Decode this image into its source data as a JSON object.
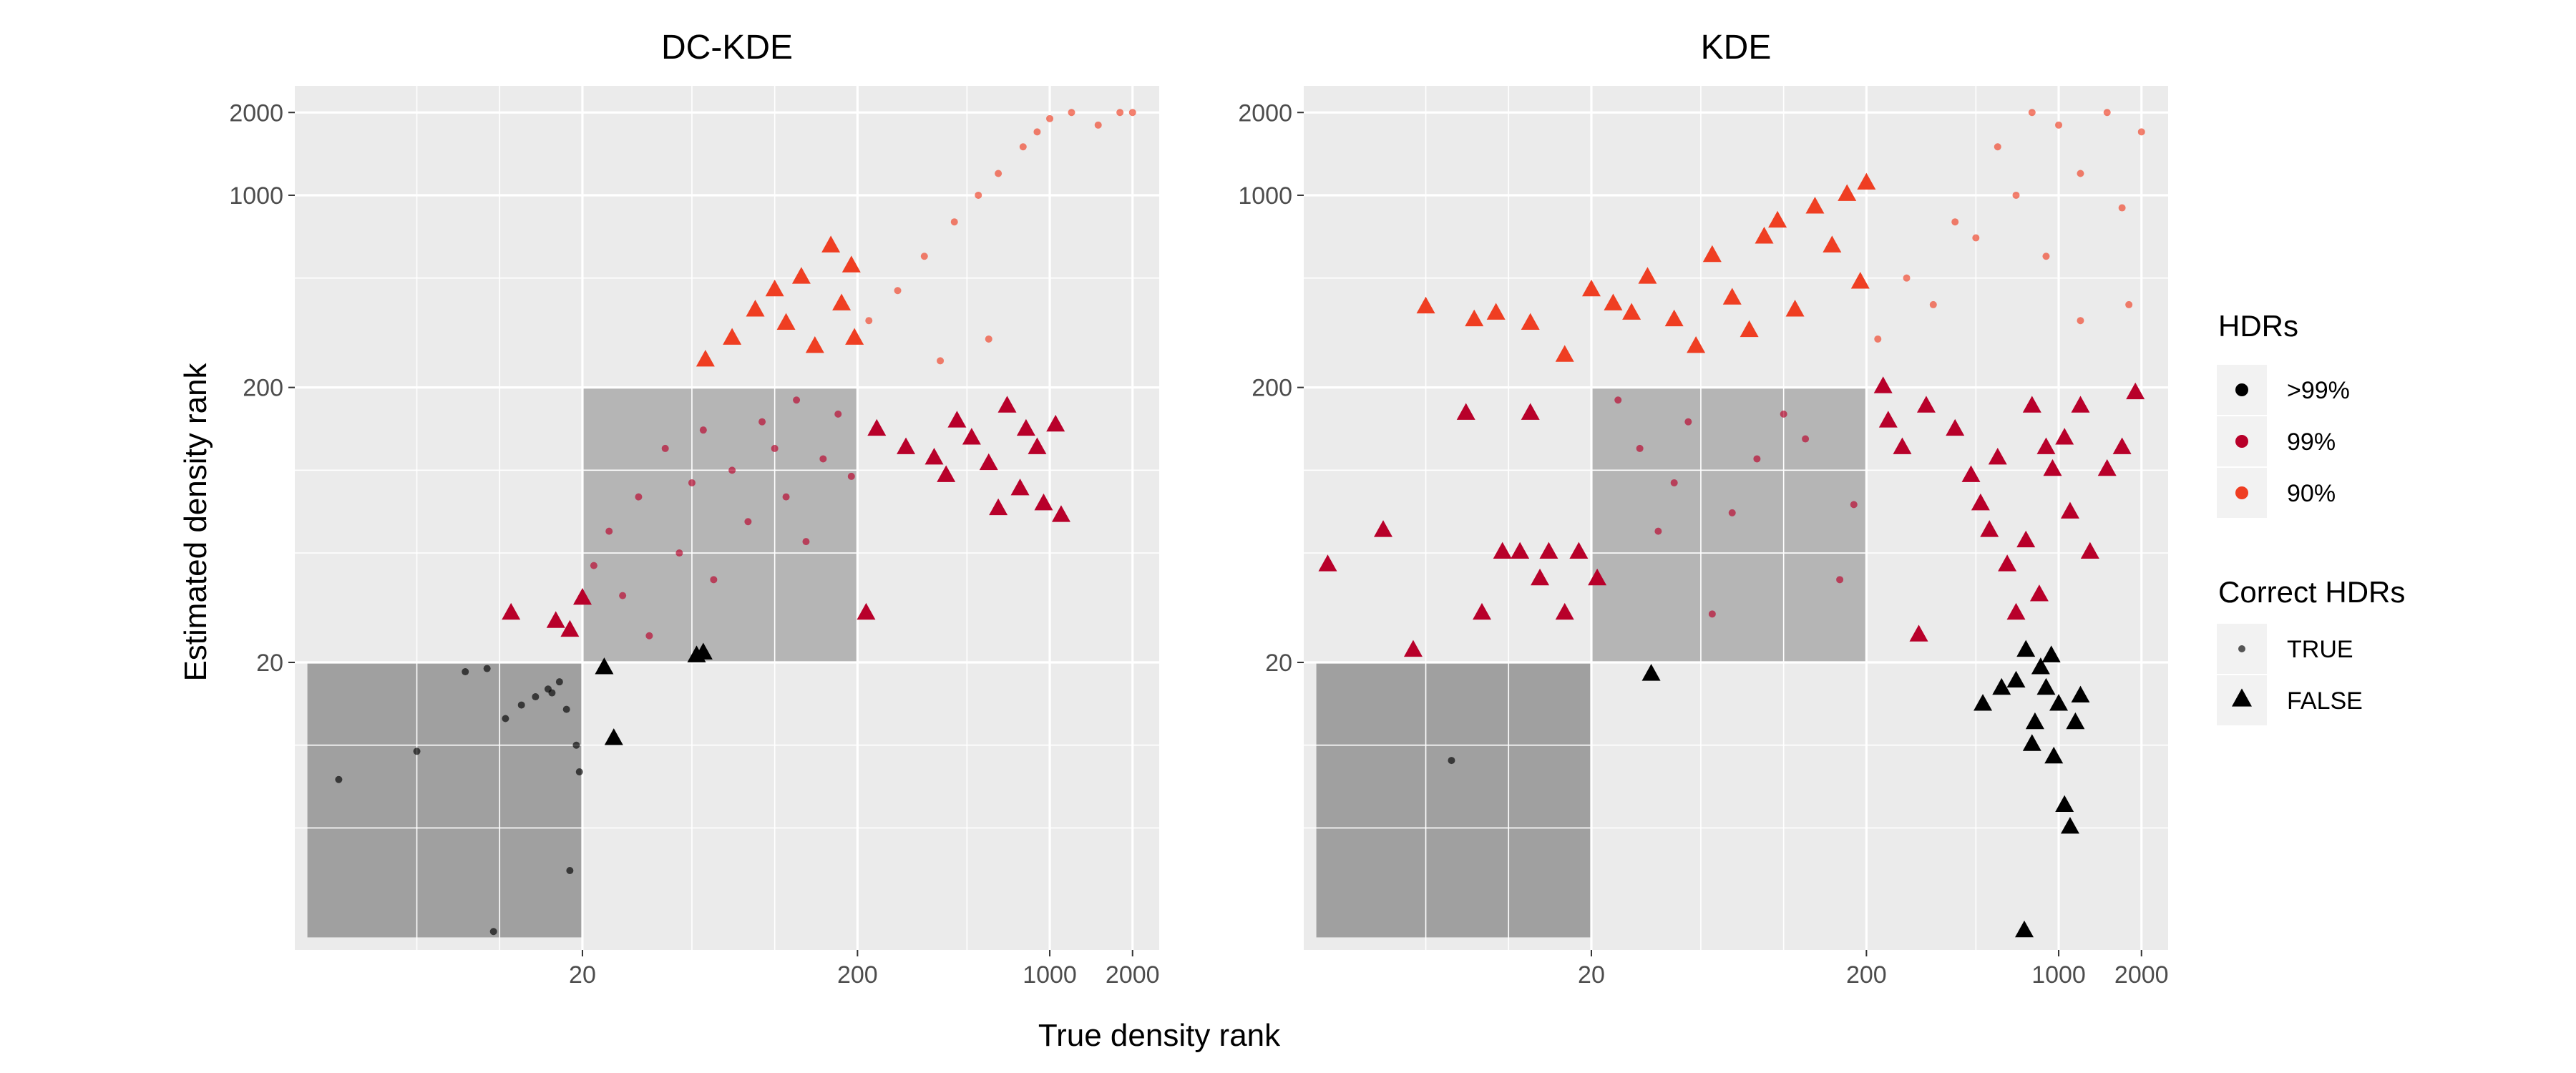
{
  "x_title": "True density rank",
  "y_title": "Estimated density rank",
  "legend": {
    "hdr_title": "HDRs",
    "hdr_items": [
      {
        "label": ">99%",
        "color": "#000000"
      },
      {
        "label": "99%",
        "color": "#b8002a"
      },
      {
        "label": "90%",
        "color": "#ef3e22"
      }
    ],
    "correct_title": "Correct HDRs",
    "correct_items": [
      {
        "label": "TRUE",
        "shape": "circle"
      },
      {
        "label": "FALSE",
        "shape": "triangle"
      }
    ]
  },
  "colors": {
    "panel_bg": "#ebebeb",
    "grid": "#ffffff",
    "shade_dark": "#a0a0a0",
    "shade_light": "#b5b5b5",
    "hdr_gt99": "#000000",
    "hdr_99": "#b8002a",
    "hdr_90": "#ef3e22"
  },
  "chart_data": [
    {
      "type": "scatter",
      "title": "DC-KDE",
      "xlabel": "True density rank",
      "ylabel": "Estimated density rank",
      "x_scale": "log",
      "y_scale": "log",
      "xlim": [
        1.8,
        2500
      ],
      "ylim": [
        1.8,
        2500
      ],
      "x_ticks": [
        "20",
        "200",
        "1000",
        "2000"
      ],
      "y_ticks": [
        "20",
        "200",
        "1000",
        "2000"
      ],
      "shaded_regions": [
        {
          "x": [
            2,
            20
          ],
          "y": [
            2,
            20
          ],
          "label": ">99%"
        },
        {
          "x": [
            20,
            200
          ],
          "y": [
            20,
            200
          ],
          "label": "99%"
        }
      ],
      "series": [
        {
          "name": ">99%",
          "correct": "TRUE",
          "points": [
            [
              2.6,
              7.5
            ],
            [
              5,
              9.5
            ],
            [
              7.5,
              18.5
            ],
            [
              9,
              19
            ],
            [
              10.5,
              12.5
            ],
            [
              12,
              14
            ],
            [
              13.5,
              15
            ],
            [
              15,
              16
            ],
            [
              15.5,
              15.5
            ],
            [
              16.5,
              17
            ],
            [
              17.5,
              13.5
            ],
            [
              18,
              3.5
            ],
            [
              19,
              10
            ],
            [
              19.5,
              8
            ],
            [
              9.5,
              2.1
            ]
          ]
        },
        {
          "name": ">99%",
          "correct": "FALSE",
          "points": [
            [
              24,
              19
            ],
            [
              26,
              10.5
            ],
            [
              52,
              21
            ],
            [
              55,
              21.5
            ]
          ]
        },
        {
          "name": "99%",
          "correct": "FALSE",
          "points": [
            [
              11,
              30
            ],
            [
              16,
              28
            ],
            [
              18,
              26
            ],
            [
              20,
              34
            ],
            [
              215,
              30
            ],
            [
              235,
              140
            ],
            [
              300,
              120
            ],
            [
              380,
              110
            ],
            [
              420,
              95
            ],
            [
              460,
              150
            ],
            [
              520,
              130
            ],
            [
              600,
              105
            ],
            [
              650,
              72
            ],
            [
              700,
              170
            ],
            [
              780,
              85
            ],
            [
              820,
              140
            ],
            [
              900,
              120
            ],
            [
              950,
              75
            ],
            [
              1050,
              145
            ],
            [
              1100,
              68
            ]
          ]
        },
        {
          "name": "99%",
          "correct": "TRUE",
          "points": [
            [
              22,
              45
            ],
            [
              25,
              60
            ],
            [
              28,
              35
            ],
            [
              32,
              80
            ],
            [
              35,
              25
            ],
            [
              40,
              120
            ],
            [
              45,
              50
            ],
            [
              50,
              90
            ],
            [
              55,
              140
            ],
            [
              60,
              40
            ],
            [
              70,
              100
            ],
            [
              80,
              65
            ],
            [
              90,
              150
            ],
            [
              100,
              120
            ],
            [
              110,
              80
            ],
            [
              120,
              180
            ],
            [
              130,
              55
            ],
            [
              150,
              110
            ],
            [
              170,
              160
            ],
            [
              190,
              95
            ]
          ]
        },
        {
          "name": "90%",
          "correct": "FALSE",
          "points": [
            [
              56,
              250
            ],
            [
              70,
              300
            ],
            [
              85,
              380
            ],
            [
              100,
              450
            ],
            [
              110,
              340
            ],
            [
              125,
              500
            ],
            [
              140,
              280
            ],
            [
              160,
              650
            ],
            [
              175,
              400
            ],
            [
              190,
              550
            ],
            [
              195,
              300
            ]
          ]
        },
        {
          "name": "90%",
          "correct": "TRUE",
          "points": [
            [
              220,
              350
            ],
            [
              280,
              450
            ],
            [
              350,
              600
            ],
            [
              450,
              800
            ],
            [
              550,
              1000
            ],
            [
              650,
              1200
            ],
            [
              800,
              1500
            ],
            [
              900,
              1700
            ],
            [
              1000,
              1900
            ],
            [
              1200,
              2000
            ],
            [
              1500,
              1800
            ],
            [
              1800,
              2000
            ],
            [
              2000,
              2000
            ],
            [
              400,
              250
            ],
            [
              600,
              300
            ]
          ]
        }
      ]
    },
    {
      "type": "scatter",
      "title": "KDE",
      "xlabel": "True density rank",
      "ylabel": "Estimated density rank",
      "x_scale": "log",
      "y_scale": "log",
      "xlim": [
        1.8,
        2500
      ],
      "ylim": [
        1.8,
        2500
      ],
      "x_ticks": [
        "20",
        "200",
        "1000",
        "2000"
      ],
      "y_ticks": [
        "20",
        "200",
        "1000",
        "2000"
      ],
      "shaded_regions": [
        {
          "x": [
            2,
            20
          ],
          "y": [
            2,
            20
          ],
          "label": ">99%"
        },
        {
          "x": [
            20,
            200
          ],
          "y": [
            20,
            200
          ],
          "label": "99%"
        }
      ],
      "series": [
        {
          "name": ">99%",
          "correct": "TRUE",
          "points": [
            [
              6.2,
              8.8
            ]
          ]
        },
        {
          "name": ">99%",
          "correct": "FALSE",
          "points": [
            [
              33,
              18
            ],
            [
              530,
              14
            ],
            [
              620,
              16
            ],
            [
              700,
              17
            ],
            [
              760,
              22
            ],
            [
              800,
              10
            ],
            [
              820,
              12
            ],
            [
              860,
              19
            ],
            [
              900,
              16
            ],
            [
              940,
              21
            ],
            [
              960,
              9
            ],
            [
              1000,
              14
            ],
            [
              1050,
              6
            ],
            [
              1100,
              5
            ],
            [
              1150,
              12
            ],
            [
              1200,
              15
            ],
            [
              750,
              2.1
            ]
          ]
        },
        {
          "name": "99%",
          "correct": "FALSE",
          "points": [
            [
              2.2,
              45
            ],
            [
              3.5,
              60
            ],
            [
              4.5,
              22
            ],
            [
              7,
              160
            ],
            [
              8,
              30
            ],
            [
              9.5,
              50
            ],
            [
              11,
              50
            ],
            [
              12,
              160
            ],
            [
              13,
              40
            ],
            [
              14,
              50
            ],
            [
              16,
              30
            ],
            [
              18,
              50
            ],
            [
              21,
              40
            ],
            [
              230,
              200
            ],
            [
              240,
              150
            ],
            [
              270,
              120
            ],
            [
              310,
              25
            ],
            [
              330,
              170
            ],
            [
              420,
              140
            ],
            [
              480,
              95
            ],
            [
              520,
              75
            ],
            [
              560,
              60
            ],
            [
              600,
              110
            ],
            [
              650,
              45
            ],
            [
              700,
              30
            ],
            [
              760,
              55
            ],
            [
              800,
              170
            ],
            [
              850,
              35
            ],
            [
              900,
              120
            ],
            [
              950,
              100
            ],
            [
              1050,
              130
            ],
            [
              1100,
              70
            ],
            [
              1200,
              170
            ],
            [
              1300,
              50
            ],
            [
              1500,
              100
            ],
            [
              1700,
              120
            ],
            [
              1900,
              190
            ]
          ]
        },
        {
          "name": "99%",
          "correct": "TRUE",
          "points": [
            [
              25,
              180
            ],
            [
              30,
              120
            ],
            [
              35,
              60
            ],
            [
              40,
              90
            ],
            [
              45,
              150
            ],
            [
              55,
              30
            ],
            [
              65,
              70
            ],
            [
              80,
              110
            ],
            [
              100,
              160
            ],
            [
              120,
              130
            ],
            [
              160,
              40
            ],
            [
              180,
              75
            ]
          ]
        },
        {
          "name": "90%",
          "correct": "FALSE",
          "points": [
            [
              5,
              390
            ],
            [
              7.5,
              350
            ],
            [
              9,
              370
            ],
            [
              12,
              340
            ],
            [
              16,
              260
            ],
            [
              20,
              450
            ],
            [
              24,
              400
            ],
            [
              28,
              370
            ],
            [
              32,
              500
            ],
            [
              40,
              350
            ],
            [
              48,
              280
            ],
            [
              55,
              600
            ],
            [
              65,
              420
            ],
            [
              75,
              320
            ],
            [
              85,
              700
            ],
            [
              95,
              800
            ],
            [
              110,
              380
            ],
            [
              130,
              900
            ],
            [
              150,
              650
            ],
            [
              170,
              1000
            ],
            [
              190,
              480
            ],
            [
              200,
              1100
            ]
          ]
        },
        {
          "name": "90%",
          "correct": "TRUE",
          "points": [
            [
              220,
              300
            ],
            [
              280,
              500
            ],
            [
              350,
              400
            ],
            [
              420,
              800
            ],
            [
              500,
              700
            ],
            [
              600,
              1500
            ],
            [
              700,
              1000
            ],
            [
              800,
              2000
            ],
            [
              900,
              600
            ],
            [
              1000,
              1800
            ],
            [
              1200,
              1200
            ],
            [
              1500,
              2000
            ],
            [
              1700,
              900
            ],
            [
              2000,
              1700
            ],
            [
              1800,
              400
            ],
            [
              1200,
              350
            ]
          ]
        }
      ]
    }
  ]
}
